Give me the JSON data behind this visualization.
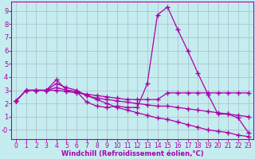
{
  "xlabel": "Windchill (Refroidissement éolien,°C)",
  "xlim": [
    -0.5,
    23.5
  ],
  "ylim": [
    -0.7,
    9.7
  ],
  "xticks": [
    0,
    1,
    2,
    3,
    4,
    5,
    6,
    7,
    8,
    9,
    10,
    11,
    12,
    13,
    14,
    15,
    16,
    17,
    18,
    19,
    20,
    21,
    22,
    23
  ],
  "yticks": [
    0,
    1,
    2,
    3,
    4,
    5,
    6,
    7,
    8,
    9
  ],
  "ytick_labels": [
    "-0",
    "1",
    "2",
    "3",
    "4",
    "5",
    "6",
    "7",
    "8",
    "9"
  ],
  "background_color": "#c5ecee",
  "line_color": "#aa00aa",
  "grid_color": "#aabbcc",
  "line1_x": [
    0,
    1,
    2,
    3,
    4,
    5,
    6,
    7,
    8,
    9,
    10,
    11,
    12,
    13,
    14,
    15,
    16,
    17,
    18,
    19,
    20,
    21,
    22,
    23
  ],
  "line1_y": [
    2.2,
    3.0,
    3.0,
    3.0,
    3.8,
    3.0,
    2.9,
    2.1,
    1.8,
    1.7,
    1.8,
    1.7,
    1.7,
    3.5,
    8.7,
    9.3,
    7.6,
    6.0,
    4.3,
    2.7,
    1.2,
    1.2,
    0.9,
    -0.2
  ],
  "line2_x": [
    0,
    1,
    2,
    3,
    4,
    5,
    6,
    7,
    8,
    9,
    10,
    11,
    12,
    13,
    14,
    15,
    16,
    17,
    18,
    19,
    20,
    21,
    22,
    23
  ],
  "line2_y": [
    2.2,
    3.0,
    3.0,
    3.0,
    3.0,
    2.9,
    2.8,
    2.7,
    2.6,
    2.5,
    2.4,
    2.3,
    2.3,
    2.3,
    2.3,
    2.8,
    2.8,
    2.8,
    2.8,
    2.8,
    2.8,
    2.8,
    2.8,
    2.8
  ],
  "line3_x": [
    0,
    1,
    2,
    3,
    4,
    5,
    6,
    7,
    8,
    9,
    10,
    11,
    12,
    13,
    14,
    15,
    16,
    17,
    18,
    19,
    20,
    21,
    22,
    23
  ],
  "line3_y": [
    2.2,
    3.0,
    3.0,
    3.0,
    3.2,
    3.0,
    2.9,
    2.6,
    2.4,
    2.3,
    2.2,
    2.1,
    2.0,
    1.9,
    1.8,
    1.8,
    1.7,
    1.6,
    1.5,
    1.4,
    1.3,
    1.2,
    1.1,
    1.0
  ],
  "line4_x": [
    0,
    1,
    2,
    3,
    4,
    5,
    6,
    7,
    8,
    9,
    10,
    11,
    12,
    13,
    14,
    15,
    16,
    17,
    18,
    19,
    20,
    21,
    22,
    23
  ],
  "line4_y": [
    2.2,
    3.0,
    3.0,
    3.0,
    3.5,
    3.2,
    3.0,
    2.6,
    2.3,
    2.0,
    1.7,
    1.5,
    1.3,
    1.1,
    0.9,
    0.8,
    0.6,
    0.4,
    0.2,
    0.0,
    -0.1,
    -0.2,
    -0.4,
    -0.5
  ]
}
